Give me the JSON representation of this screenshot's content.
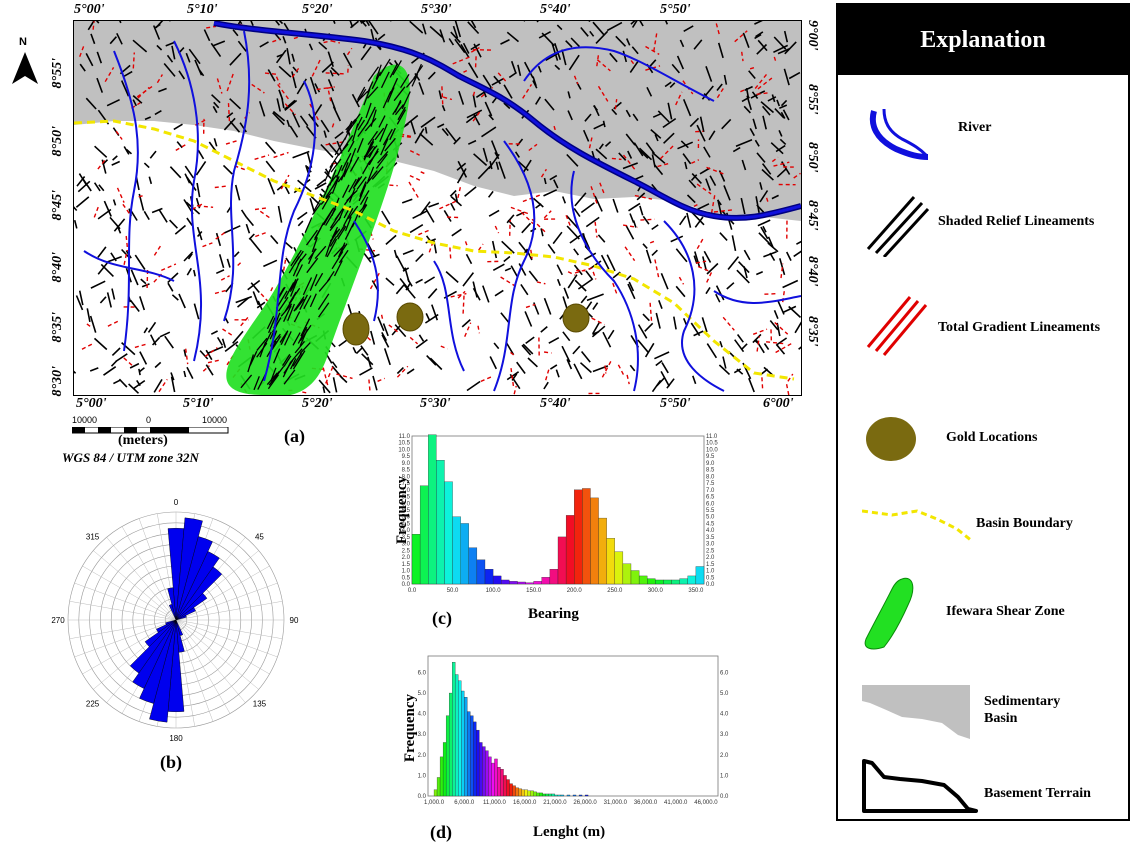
{
  "map": {
    "top_lon_labels": [
      "5°00'",
      "5°10'",
      "5°20'",
      "5°30'",
      "5°40'",
      "5°50'"
    ],
    "bottom_lon_labels": [
      "5°00'",
      "5°10'",
      "5°20'",
      "5°30'",
      "5°40'",
      "5°50'",
      "6°00'"
    ],
    "left_lat_labels": [
      "8°55'",
      "8°50'",
      "8°45'",
      "8°40'",
      "8°35'",
      "8°30'"
    ],
    "right_lat_labels": [
      "9°00'",
      "8°55'",
      "8°50'",
      "8°45'",
      "8°40'",
      "8°35'"
    ],
    "north_label": "N",
    "panel_label": "(a)",
    "colors": {
      "basin": "#c0c0c0",
      "shear_zone": "#22e022",
      "river": "#1010dd",
      "gold": "#7a6a10",
      "boundary": "#f2e600",
      "relief": "#000000",
      "gradient": "#e00000"
    }
  },
  "scale": {
    "labels": [
      "10000",
      "0",
      "10000"
    ],
    "units": "(meters)",
    "projection": "WGS 84 / UTM zone 32N"
  },
  "rose": {
    "panel_label": "(b)",
    "angle_labels": [
      "0",
      "45",
      "90",
      "135",
      "180",
      "225",
      "270",
      "315"
    ],
    "color": "#0000ee"
  },
  "chart_c": {
    "panel_label": "(c)",
    "ylabel": "Frequency",
    "xlabel": "Bearing",
    "x_ticks": [
      "0.0",
      "50.0",
      "100.0",
      "150.0",
      "200.0",
      "250.0",
      "300.0",
      "350.0"
    ],
    "y_ticks": [
      "0.0",
      "0.5",
      "1.0",
      "1.5",
      "2.0",
      "2.5",
      "3.0",
      "3.5",
      "4.0",
      "4.5",
      "5.0",
      "5.5",
      "6.0",
      "6.5",
      "7.0",
      "7.5",
      "8.0",
      "8.5",
      "9.0",
      "9.5",
      "10.0",
      "10.5",
      "11.0"
    ]
  },
  "chart_d": {
    "panel_label": "(d)",
    "ylabel": "Frequency",
    "xlabel": "Lenght (m)",
    "x_ticks": [
      "1,000.0",
      "6,000.0",
      "11,000.0",
      "16,000.0",
      "21,000.0",
      "26,000.0",
      "31,000.0",
      "36,000.0",
      "41,000.0",
      "46,000.0"
    ],
    "y_ticks": [
      "0.0",
      "1.0",
      "2.0",
      "3.0",
      "4.0",
      "5.0",
      "6.0"
    ]
  },
  "chart_data": [
    {
      "type": "bar",
      "title": "",
      "xlabel": "Bearing",
      "ylabel": "Frequency",
      "xlim": [
        0,
        360
      ],
      "ylim": [
        0,
        11
      ],
      "bin_width": 10,
      "x": [
        5,
        15,
        25,
        35,
        45,
        55,
        65,
        75,
        85,
        95,
        105,
        115,
        125,
        135,
        145,
        155,
        165,
        175,
        185,
        195,
        205,
        215,
        225,
        235,
        245,
        255,
        265,
        275,
        285,
        295,
        305,
        315,
        325,
        335,
        345,
        355
      ],
      "values": [
        3.7,
        7.3,
        11.1,
        9.2,
        7.6,
        5.0,
        4.5,
        2.7,
        1.8,
        1.1,
        0.6,
        0.3,
        0.2,
        0.15,
        0.1,
        0.2,
        0.5,
        1.1,
        3.5,
        5.1,
        7.0,
        7.1,
        6.4,
        4.9,
        3.4,
        2.4,
        1.5,
        1.0,
        0.6,
        0.4,
        0.3,
        0.3,
        0.3,
        0.4,
        0.6,
        1.3
      ]
    },
    {
      "type": "bar",
      "title": "",
      "xlabel": "Lenght (m)",
      "ylabel": "Frequency",
      "xlim": [
        0,
        48000
      ],
      "ylim": [
        0,
        6.8
      ],
      "bin_width": 500,
      "x": [
        1250,
        1750,
        2250,
        2750,
        3250,
        3750,
        4250,
        4750,
        5250,
        5750,
        6250,
        6750,
        7250,
        7750,
        8250,
        8750,
        9250,
        9750,
        10250,
        10750,
        11250,
        11750,
        12250,
        12750,
        13250,
        13750,
        14250,
        14750,
        15250,
        15750,
        16250,
        16750,
        17250,
        17750,
        18250,
        18750,
        19250,
        19750,
        20250,
        20750,
        21250,
        21750,
        22250,
        23250,
        24250,
        25250,
        26250
      ],
      "values": [
        0.3,
        0.9,
        1.9,
        2.6,
        3.9,
        5.0,
        6.5,
        5.9,
        5.6,
        5.1,
        4.8,
        4.1,
        3.9,
        3.6,
        3.2,
        2.6,
        2.4,
        2.2,
        1.9,
        1.6,
        1.8,
        1.4,
        1.3,
        1.0,
        0.8,
        0.6,
        0.5,
        0.4,
        0.35,
        0.3,
        0.3,
        0.25,
        0.25,
        0.2,
        0.15,
        0.15,
        0.1,
        0.1,
        0.1,
        0.1,
        0.05,
        0.05,
        0.05,
        0.05,
        0.05,
        0.05,
        0.05
      ]
    }
  ],
  "legend": {
    "title": "Explanation",
    "items": [
      {
        "label": "River"
      },
      {
        "label": "Shaded Relief Lineaments"
      },
      {
        "label": "Total Gradient Lineaments"
      },
      {
        "label": "Gold Locations"
      },
      {
        "label": "Basin Boundary"
      },
      {
        "label": "Ifewara Shear Zone"
      },
      {
        "label_line1": "Sedimentary",
        "label_line2": "Basin"
      },
      {
        "label": "Basement Terrain"
      }
    ]
  }
}
